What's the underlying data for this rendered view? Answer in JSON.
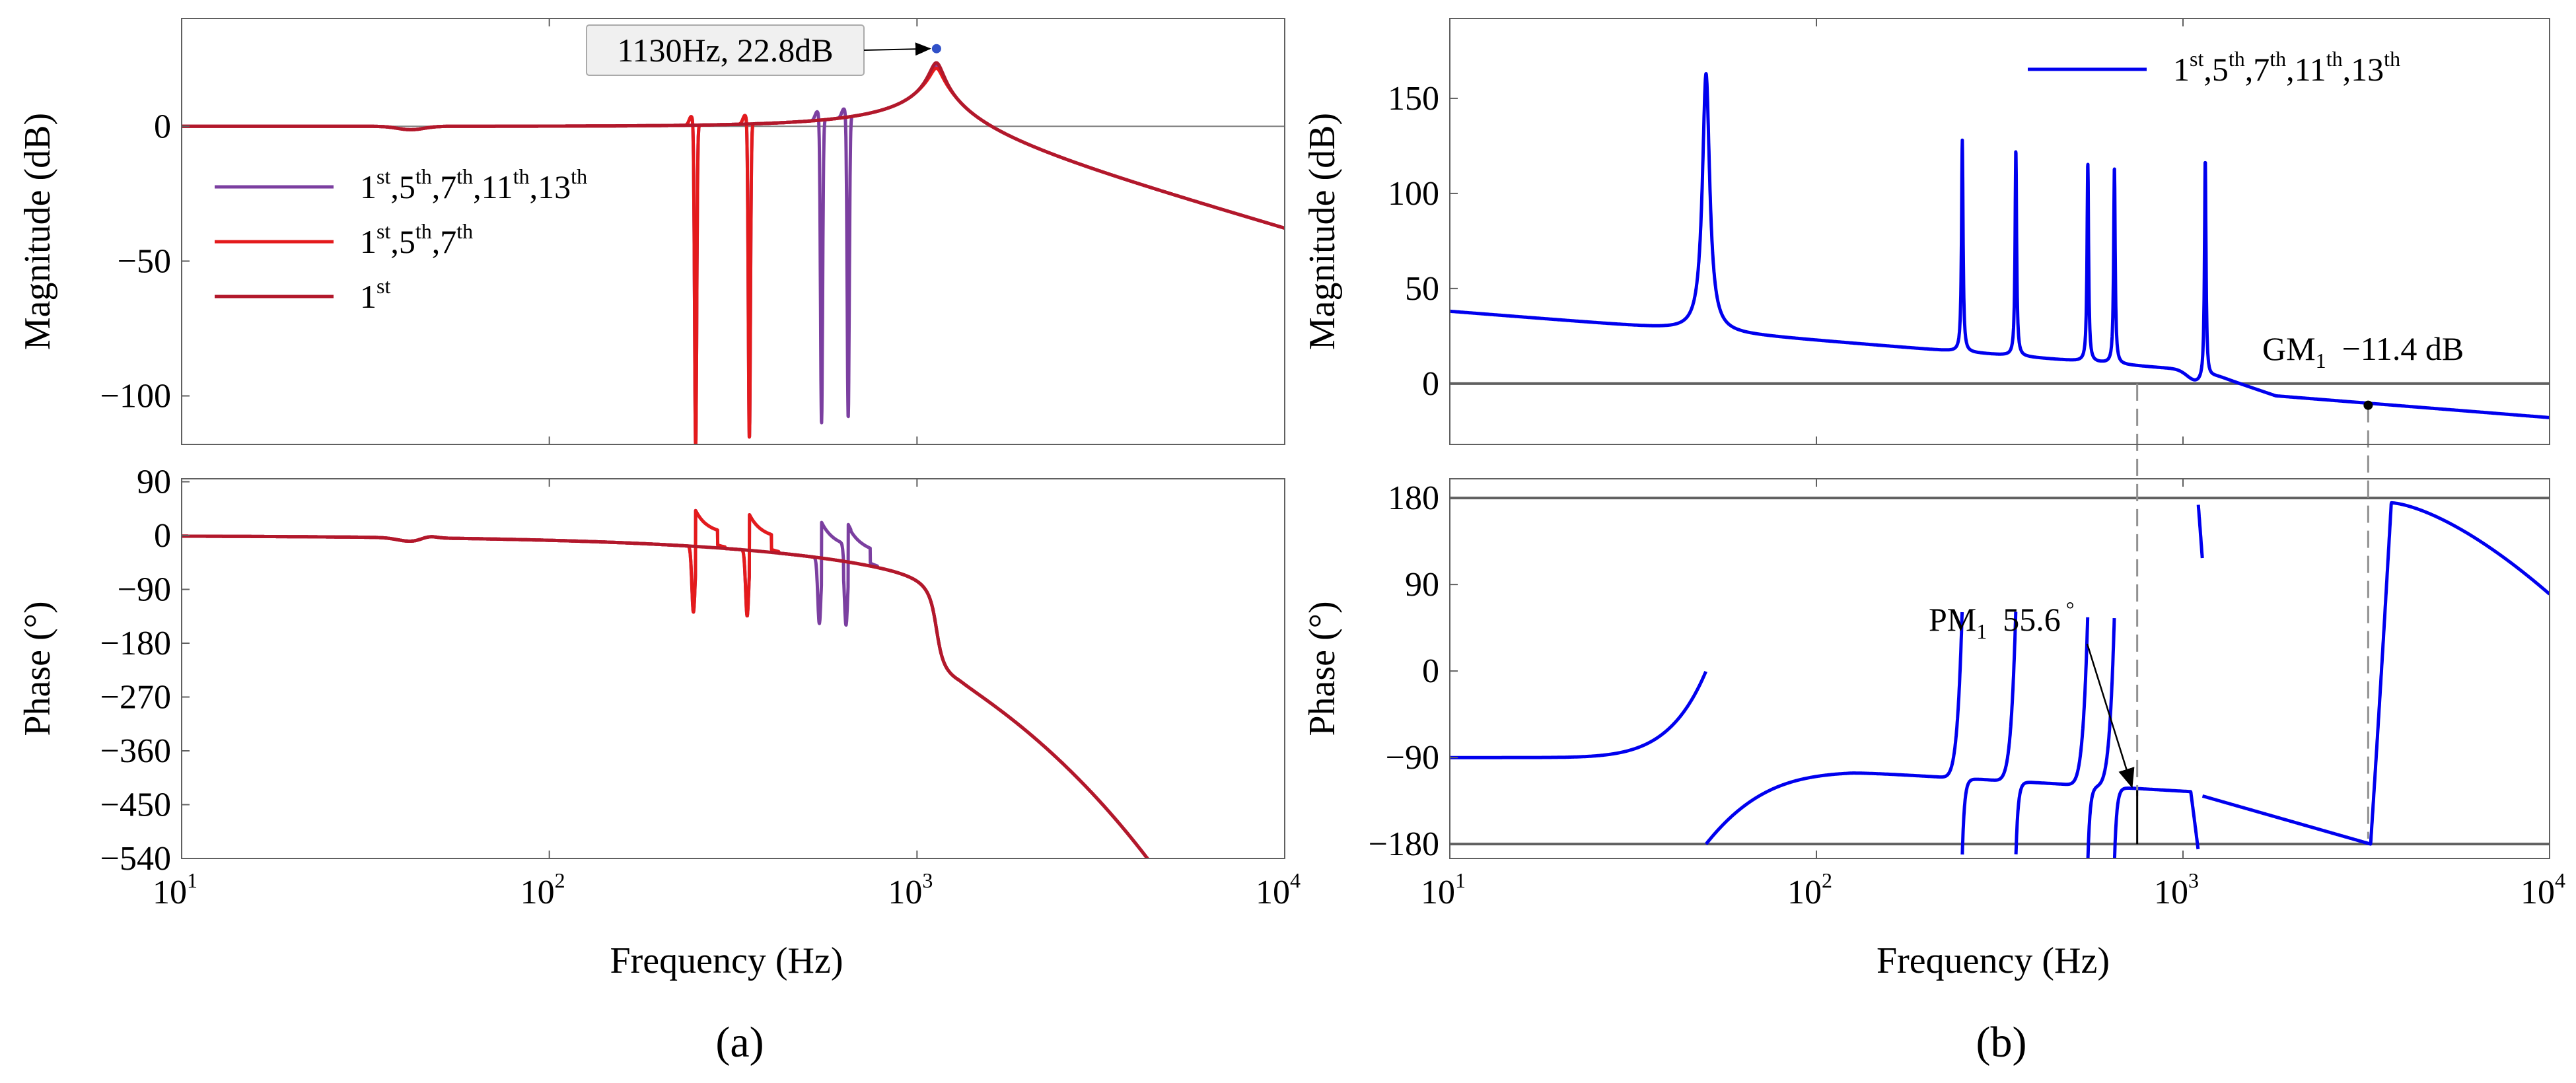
{
  "colors": {
    "axis": "#606060",
    "zero_line": "#808080",
    "purple": "#7B3FA0",
    "red": "#E41A1C",
    "darkred": "#B2182B",
    "blue": "#0000EE",
    "annot_box_fill": "#f0f0f0",
    "annot_box_stroke": "#aaaaaa"
  },
  "chart_data": [
    {
      "panel": "(a)",
      "type": "line",
      "title": "",
      "xscale": "log",
      "xlabel": "Frequency  (Hz)",
      "xlim": [
        10,
        10000
      ],
      "xtick_labels": [
        {
          "base": "10",
          "exp": "1"
        },
        {
          "base": "10",
          "exp": "2"
        },
        {
          "base": "10",
          "exp": "3"
        },
        {
          "base": "10",
          "exp": "4"
        }
      ],
      "magnitude": {
        "ylabel": "Magnitude (dB)",
        "ylim": [
          -118,
          40
        ],
        "yticks": [
          0,
          -50,
          -100
        ],
        "ytick_labels": [
          "0",
          "−50",
          "−100"
        ],
        "annotation": {
          "text": "1130Hz, 22.8dB",
          "x": 1130,
          "y": 22.8,
          "marker_color": "#3050C8"
        },
        "legend": [
          {
            "base": "1",
            "sups": [
              "st",
              "th",
              "th",
              "th",
              "th"
            ],
            "parts": [
              "5",
              "7",
              "11",
              "13"
            ],
            "color": "#7B3FA0"
          },
          {
            "base": "1",
            "sups": [
              "st",
              "th",
              "th"
            ],
            "parts": [
              "5",
              "7"
            ],
            "color": "#E41A1C"
          },
          {
            "base": "1",
            "sups": [
              "st"
            ],
            "parts": [],
            "color": "#B2182B"
          }
        ],
        "series": [
          {
            "name": "1st",
            "color": "#B2182B",
            "resonances": [],
            "peak_db": 23.5
          },
          {
            "name": "1st,5th,7th",
            "color": "#E41A1C",
            "resonances": [
              250,
              350
            ],
            "peak_db": 21.5
          },
          {
            "name": "1st,5th,7th,11th,13th",
            "color": "#7B3FA0",
            "resonances": [
              250,
              350,
              550,
              650
            ],
            "peak_db": 22.8
          }
        ],
        "notch_depths_db": [
          -118,
          -115,
          -111,
          -110
        ]
      },
      "phase": {
        "ylabel": "Phase (°)",
        "ylim": [
          -540,
          95
        ],
        "yticks": [
          90,
          0,
          -90,
          -180,
          -270,
          -360,
          -450,
          -540
        ],
        "ytick_labels": [
          "90",
          "0",
          "−90",
          "−180",
          "−270",
          "−360",
          "−450",
          "−540"
        ]
      }
    },
    {
      "panel": "(b)",
      "type": "line",
      "title": "",
      "xscale": "log",
      "xlabel": "Frequency  (Hz)",
      "xlim": [
        10,
        10000
      ],
      "xtick_labels": [
        {
          "base": "10",
          "exp": "1"
        },
        {
          "base": "10",
          "exp": "2"
        },
        {
          "base": "10",
          "exp": "3"
        },
        {
          "base": "10",
          "exp": "4"
        }
      ],
      "magnitude": {
        "ylabel": "Magnitude (dB)",
        "ylim": [
          -32,
          192
        ],
        "yticks": [
          150,
          100,
          50,
          0
        ],
        "ytick_labels": [
          "150",
          "100",
          "50",
          "0"
        ],
        "legend": [
          {
            "base": "1",
            "sups": [
              "st",
              "th",
              "th",
              "th",
              "th"
            ],
            "parts": [
              "5",
              "7",
              "11",
              "13"
            ],
            "color": "#0000EE"
          }
        ],
        "series": [
          {
            "name": "1st,5th,7th,11th,13th",
            "color": "#0000EE",
            "peaks_hz": [
              50,
              250,
              350,
              550,
              650,
              1150
            ],
            "peaks_db": [
              163,
              128,
              123,
              116,
              114,
              122
            ]
          }
        ],
        "gain_margin": {
          "label": "GM",
          "sub": "1",
          "value": "−11.4 dB",
          "x": 3200,
          "y": -11.4
        },
        "crossover_hz": 750
      },
      "phase": {
        "ylabel": "Phase (°)",
        "ylim": [
          -195,
          200
        ],
        "yticks": [
          180,
          90,
          0,
          -90,
          -180
        ],
        "ytick_labels": [
          "180",
          "90",
          "0",
          "−90",
          "−180"
        ],
        "phase_margin": {
          "label": "PM",
          "sub": "1",
          "value": "55.6",
          "unit": "°",
          "x": 750,
          "y": -124.4
        }
      }
    }
  ],
  "captions": [
    "(a)",
    "(b)"
  ]
}
